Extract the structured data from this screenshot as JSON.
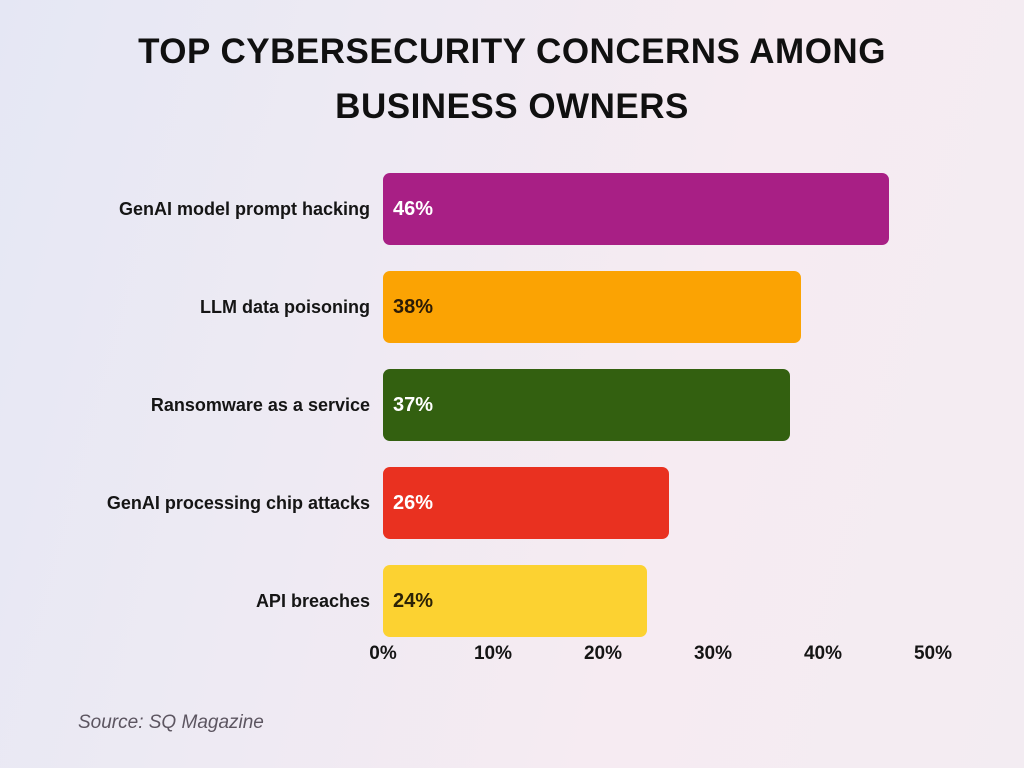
{
  "header": {
    "title": "TOP CYBERSECURITY CONCERNS AMONG BUSINESS OWNERS"
  },
  "footer": {
    "source": "Source: SQ Magazine"
  },
  "chart_data": {
    "type": "bar",
    "orientation": "horizontal",
    "title": "TOP CYBERSECURITY CONCERNS AMONG BUSINESS OWNERS",
    "categories": [
      "GenAI model prompt hacking",
      "LLM data poisoning",
      "Ransomware as a service",
      "GenAI processing chip attacks",
      "API breaches"
    ],
    "values": [
      46,
      38,
      37,
      26,
      24
    ],
    "value_labels": [
      "46%",
      "38%",
      "37%",
      "26%",
      "24%"
    ],
    "bar_colors": [
      "#a81f85",
      "#fba303",
      "#336010",
      "#e93120",
      "#fcd231"
    ],
    "value_label_colors": [
      "#ffffff",
      "#2b1b06",
      "#ffffff",
      "#ffffff",
      "#2b2206"
    ],
    "x_ticks": [
      "0%",
      "10%",
      "20%",
      "30%",
      "40%",
      "50%"
    ],
    "xlabel": "",
    "ylabel": "",
    "xlim": [
      0,
      50
    ],
    "grid": false,
    "legend": false,
    "source": "Source: SQ Magazine"
  }
}
